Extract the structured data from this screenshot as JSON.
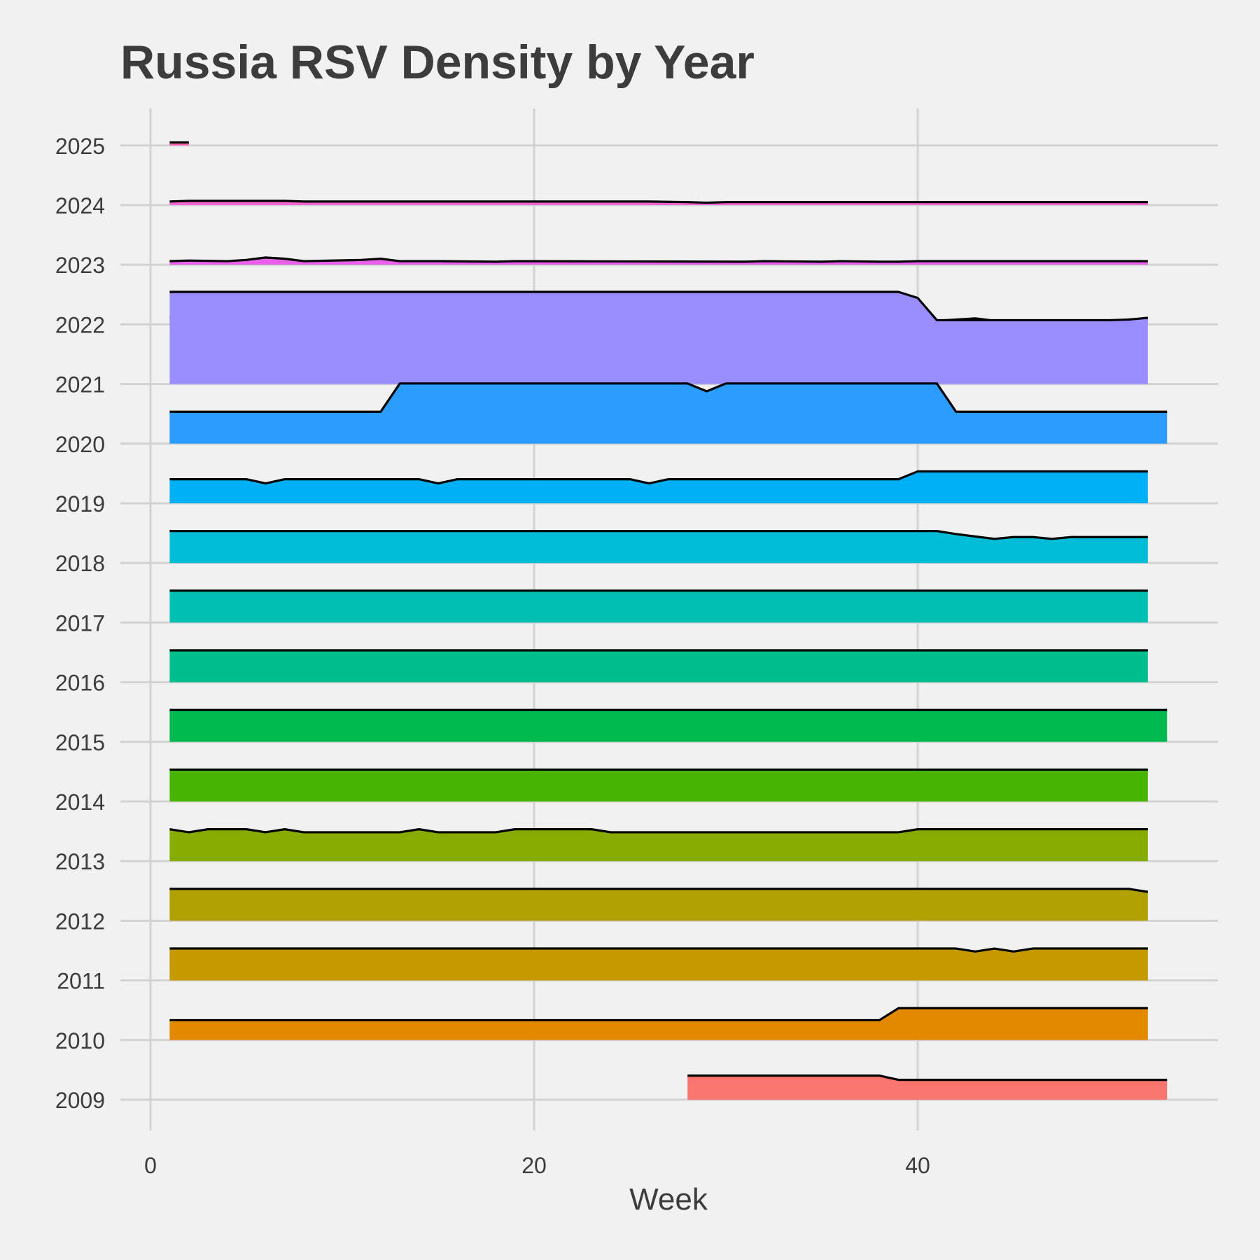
{
  "chart_data": {
    "type": "area",
    "subtype": "ridgeline",
    "title": "Russia RSV Density by Year",
    "xlabel": "Week",
    "ylabel": "",
    "xlim": [
      -1,
      56
    ],
    "x_ticks": [
      0,
      20,
      40
    ],
    "y_ticks": [
      "2009",
      "2010",
      "2011",
      "2012",
      "2013",
      "2014",
      "2015",
      "2016",
      "2017",
      "2018",
      "2019",
      "2020",
      "2021",
      "2022",
      "2023",
      "2024",
      "2025"
    ],
    "density_unit_ridge_height": 1,
    "grid": true,
    "legend": "none",
    "series": [
      {
        "year": "2009",
        "color": "#F8766D",
        "points": [
          [
            28,
            0.4
          ],
          [
            38,
            0.4
          ],
          [
            39,
            0.33
          ],
          [
            53,
            0.33
          ]
        ]
      },
      {
        "year": "2010",
        "color": "#E38900",
        "points": [
          [
            1,
            0.33
          ],
          [
            38,
            0.33
          ],
          [
            39,
            0.53
          ],
          [
            52,
            0.53
          ]
        ]
      },
      {
        "year": "2011",
        "color": "#C49A00",
        "points": [
          [
            1,
            0.53
          ],
          [
            42,
            0.53
          ],
          [
            43,
            0.48
          ],
          [
            44,
            0.53
          ],
          [
            45,
            0.48
          ],
          [
            46,
            0.53
          ],
          [
            52,
            0.53
          ]
        ]
      },
      {
        "year": "2012",
        "color": "#B0A000",
        "points": [
          [
            1,
            0.53
          ],
          [
            51,
            0.53
          ],
          [
            52,
            0.48
          ]
        ]
      },
      {
        "year": "2013",
        "color": "#86AC00",
        "points": [
          [
            1,
            0.53
          ],
          [
            2,
            0.48
          ],
          [
            3,
            0.53
          ],
          [
            5,
            0.53
          ],
          [
            6,
            0.48
          ],
          [
            7,
            0.53
          ],
          [
            8,
            0.48
          ],
          [
            13,
            0.48
          ],
          [
            14,
            0.53
          ],
          [
            15,
            0.48
          ],
          [
            18,
            0.48
          ],
          [
            19,
            0.53
          ],
          [
            23,
            0.53
          ],
          [
            24,
            0.48
          ],
          [
            39,
            0.48
          ],
          [
            40,
            0.53
          ],
          [
            52,
            0.53
          ]
        ]
      },
      {
        "year": "2014",
        "color": "#46B400",
        "points": [
          [
            1,
            0.53
          ],
          [
            52,
            0.53
          ]
        ]
      },
      {
        "year": "2015",
        "color": "#00BA50",
        "points": [
          [
            1,
            0.53
          ],
          [
            53,
            0.53
          ]
        ]
      },
      {
        "year": "2016",
        "color": "#00BE8C",
        "points": [
          [
            1,
            0.53
          ],
          [
            52,
            0.53
          ]
        ]
      },
      {
        "year": "2017",
        "color": "#00BFB3",
        "points": [
          [
            1,
            0.53
          ],
          [
            52,
            0.53
          ]
        ]
      },
      {
        "year": "2018",
        "color": "#00BCD6",
        "points": [
          [
            1,
            0.53
          ],
          [
            41,
            0.53
          ],
          [
            42,
            0.48
          ],
          [
            44,
            0.4
          ],
          [
            45,
            0.43
          ],
          [
            46,
            0.43
          ],
          [
            47,
            0.4
          ],
          [
            48,
            0.43
          ],
          [
            52,
            0.43
          ]
        ]
      },
      {
        "year": "2019",
        "color": "#00B0F6",
        "points": [
          [
            1,
            0.4
          ],
          [
            5,
            0.4
          ],
          [
            6,
            0.33
          ],
          [
            7,
            0.4
          ],
          [
            14,
            0.4
          ],
          [
            15,
            0.33
          ],
          [
            16,
            0.4
          ],
          [
            25,
            0.4
          ],
          [
            26,
            0.33
          ],
          [
            27,
            0.4
          ],
          [
            39,
            0.4
          ],
          [
            40,
            0.53
          ],
          [
            52,
            0.53
          ]
        ]
      },
      {
        "year": "2020",
        "color": "#2A9DFF",
        "points": [
          [
            1,
            0.53
          ],
          [
            12,
            0.53
          ],
          [
            13,
            1.0
          ],
          [
            28,
            1.0
          ],
          [
            29,
            0.87
          ],
          [
            30,
            1.0
          ],
          [
            41,
            1.0
          ],
          [
            42,
            0.53
          ],
          [
            53,
            0.53
          ]
        ]
      },
      {
        "year": "2021",
        "color": "#9A8EFF",
        "points": [
          [
            1,
            1.53
          ],
          [
            39,
            1.53
          ],
          [
            40,
            1.43
          ],
          [
            41,
            1.06
          ],
          [
            50,
            1.06
          ],
          [
            51,
            1.07
          ],
          [
            52,
            1.1
          ]
        ]
      },
      {
        "year": "2022",
        "color": "#E26EF7",
        "points": [
          [
            1,
            0.13
          ],
          [
            2,
            0.06
          ],
          [
            19,
            0.06
          ],
          [
            20,
            0.05
          ],
          [
            25,
            0.06
          ],
          [
            26,
            0.05
          ],
          [
            28,
            0.05
          ],
          [
            29,
            0.06
          ],
          [
            31,
            0.06
          ],
          [
            32,
            0.05
          ],
          [
            40,
            0.05
          ],
          [
            41,
            0.06
          ],
          [
            43,
            0.1
          ],
          [
            44,
            0.06
          ],
          [
            50,
            0.06
          ],
          [
            51,
            0.08
          ],
          [
            52,
            0.09
          ]
        ]
      },
      {
        "year": "2023",
        "color": "#E660E8",
        "points": [
          [
            1,
            0.06
          ],
          [
            2,
            0.07
          ],
          [
            4,
            0.06
          ],
          [
            5,
            0.08
          ],
          [
            6,
            0.12
          ],
          [
            7,
            0.1
          ],
          [
            8,
            0.06
          ],
          [
            11,
            0.08
          ],
          [
            12,
            0.1
          ],
          [
            13,
            0.06
          ],
          [
            15,
            0.06
          ],
          [
            18,
            0.05
          ],
          [
            19,
            0.06
          ],
          [
            31,
            0.05
          ],
          [
            32,
            0.06
          ],
          [
            35,
            0.05
          ],
          [
            36,
            0.06
          ],
          [
            38,
            0.05
          ],
          [
            39,
            0.05
          ],
          [
            40,
            0.06
          ],
          [
            52,
            0.06
          ]
        ]
      },
      {
        "year": "2024",
        "color": "#F365D1",
        "points": [
          [
            1,
            0.06
          ],
          [
            2,
            0.07
          ],
          [
            7,
            0.07
          ],
          [
            8,
            0.06
          ],
          [
            26,
            0.06
          ],
          [
            28,
            0.05
          ],
          [
            29,
            0.04
          ],
          [
            30,
            0.05
          ],
          [
            52,
            0.05
          ]
        ]
      },
      {
        "year": "2025",
        "color": "#FF63B6",
        "points": [
          [
            1,
            0.05
          ],
          [
            2,
            0.05
          ]
        ]
      }
    ]
  }
}
